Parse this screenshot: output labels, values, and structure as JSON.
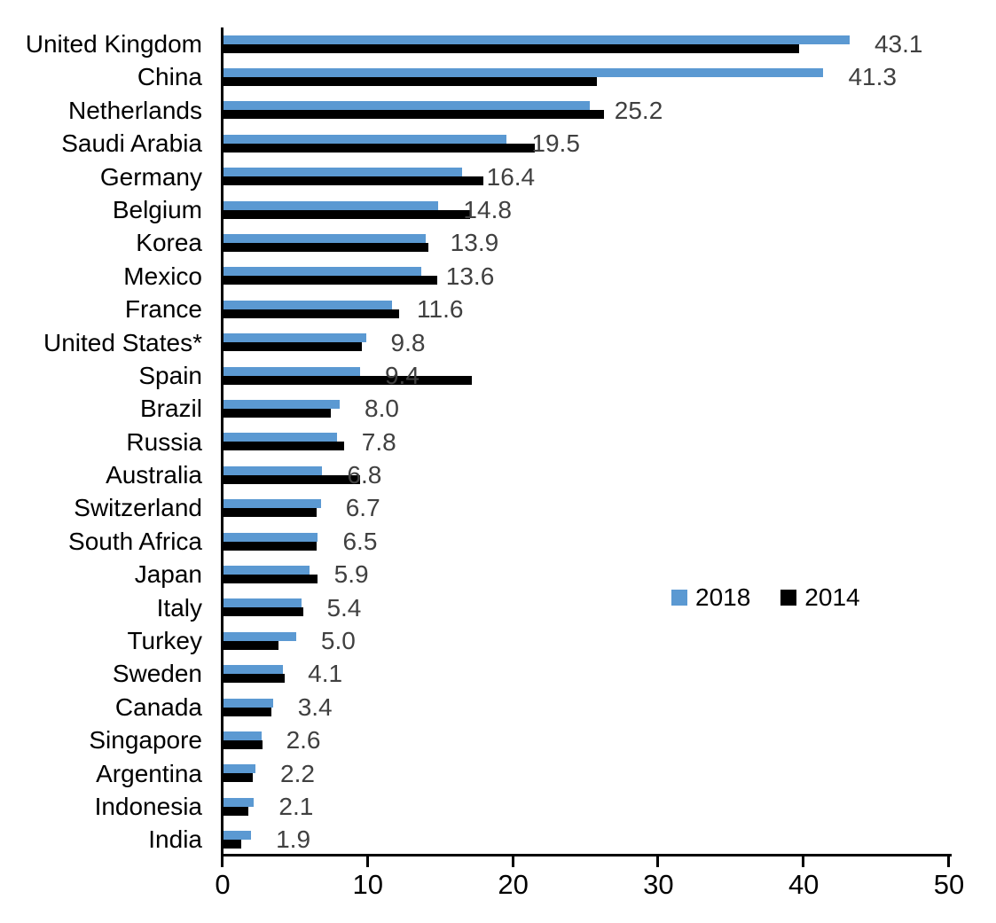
{
  "chart_data": {
    "type": "bar",
    "orientation": "horizontal",
    "title": "",
    "xlabel": "",
    "ylabel": "",
    "xlim": [
      0,
      50
    ],
    "x_ticks": [
      0,
      10,
      20,
      30,
      40,
      50
    ],
    "grid": false,
    "legend_position": "middle-right",
    "categories": [
      "United Kingdom",
      "China",
      "Netherlands",
      "Saudi Arabia",
      "Germany",
      "Belgium",
      "Korea",
      "Mexico",
      "France",
      "United States*",
      "Spain",
      "Brazil",
      "Russia",
      "Australia",
      "Switzerland",
      "South Africa",
      "Japan",
      "Italy",
      "Turkey",
      "Sweden",
      "Canada",
      "Singapore",
      "Argentina",
      "Indonesia",
      "India"
    ],
    "series": [
      {
        "name": "2018",
        "color": "#5B99D2",
        "values": [
          43.1,
          41.3,
          25.2,
          19.5,
          16.4,
          14.8,
          13.9,
          13.6,
          11.6,
          9.8,
          9.4,
          8.0,
          7.8,
          6.8,
          6.7,
          6.5,
          5.9,
          5.4,
          5.0,
          4.1,
          3.4,
          2.6,
          2.2,
          2.1,
          1.9
        ],
        "data_labels": [
          "43.1",
          "41.3",
          "25.2",
          "19.5",
          "16.4",
          "14.8",
          "13.9",
          "13.6",
          "11.6",
          "9.8",
          "9.4",
          "8.0",
          "7.8",
          "6.8",
          "6.7",
          "6.5",
          "5.9",
          "5.4",
          "5.0",
          "4.1",
          "3.4",
          "2.6",
          "2.2",
          "2.1",
          "1.9"
        ]
      },
      {
        "name": "2014",
        "color": "#000000",
        "values": [
          39.6,
          25.7,
          26.2,
          21.4,
          17.9,
          17.0,
          14.1,
          14.7,
          12.1,
          9.5,
          17.1,
          7.4,
          8.3,
          9.4,
          6.4,
          6.4,
          6.5,
          5.5,
          3.8,
          4.2,
          3.3,
          2.7,
          2.0,
          1.7,
          1.2
        ],
        "data_labels": []
      }
    ],
    "value_label_color": "#404040",
    "axis_color": "#000000"
  }
}
